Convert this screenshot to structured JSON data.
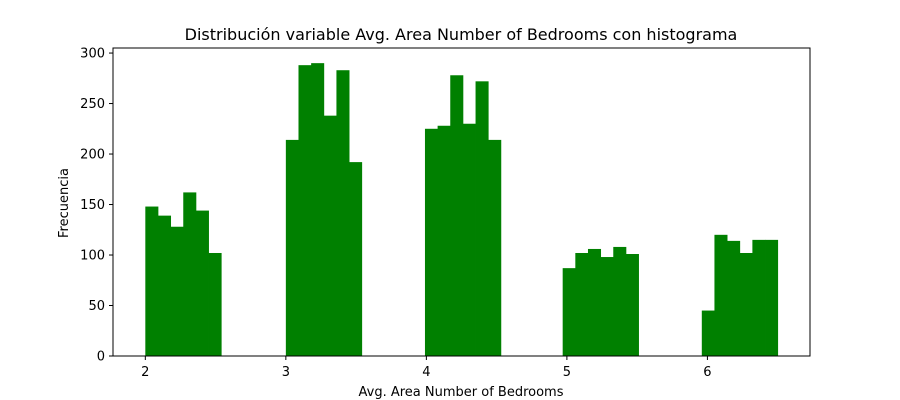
{
  "chart_data": {
    "type": "bar",
    "title": "Distribución variable Avg. Area Number of Bedrooms con histograma",
    "xlabel": "Avg. Area Number of Bedrooms",
    "ylabel": "Frecuencia",
    "xlim": [
      1.77,
      6.73
    ],
    "ylim": [
      0,
      305
    ],
    "x_ticks": [
      2,
      3,
      4,
      5,
      6
    ],
    "y_ticks": [
      0,
      50,
      100,
      150,
      200,
      250,
      300
    ],
    "bar_color": "#008000",
    "grid": false,
    "legend": "none",
    "bins": [
      {
        "x0": 2.0,
        "x1": 2.09,
        "count": 148
      },
      {
        "x0": 2.09,
        "x1": 2.18,
        "count": 139
      },
      {
        "x0": 2.18,
        "x1": 2.27,
        "count": 128
      },
      {
        "x0": 2.27,
        "x1": 2.36,
        "count": 162
      },
      {
        "x0": 2.36,
        "x1": 2.45,
        "count": 144
      },
      {
        "x0": 2.45,
        "x1": 2.54,
        "count": 102
      },
      {
        "x0": 3.0,
        "x1": 3.09,
        "count": 214
      },
      {
        "x0": 3.09,
        "x1": 3.18,
        "count": 288
      },
      {
        "x0": 3.18,
        "x1": 3.27,
        "count": 290
      },
      {
        "x0": 3.27,
        "x1": 3.36,
        "count": 238
      },
      {
        "x0": 3.36,
        "x1": 3.45,
        "count": 283
      },
      {
        "x0": 3.45,
        "x1": 3.54,
        "count": 192
      },
      {
        "x0": 3.99,
        "x1": 4.08,
        "count": 225
      },
      {
        "x0": 4.08,
        "x1": 4.17,
        "count": 228
      },
      {
        "x0": 4.17,
        "x1": 4.26,
        "count": 278
      },
      {
        "x0": 4.26,
        "x1": 4.35,
        "count": 230
      },
      {
        "x0": 4.35,
        "x1": 4.44,
        "count": 272
      },
      {
        "x0": 4.44,
        "x1": 4.53,
        "count": 214
      },
      {
        "x0": 4.97,
        "x1": 5.06,
        "count": 87
      },
      {
        "x0": 5.06,
        "x1": 5.15,
        "count": 102
      },
      {
        "x0": 5.15,
        "x1": 5.24,
        "count": 106
      },
      {
        "x0": 5.24,
        "x1": 5.33,
        "count": 98
      },
      {
        "x0": 5.33,
        "x1": 5.42,
        "count": 108
      },
      {
        "x0": 5.42,
        "x1": 5.51,
        "count": 101
      },
      {
        "x0": 5.96,
        "x1": 6.05,
        "count": 45
      },
      {
        "x0": 6.05,
        "x1": 6.14,
        "count": 120
      },
      {
        "x0": 6.14,
        "x1": 6.23,
        "count": 114
      },
      {
        "x0": 6.23,
        "x1": 6.32,
        "count": 102
      },
      {
        "x0": 6.32,
        "x1": 6.41,
        "count": 115
      },
      {
        "x0": 6.41,
        "x1": 6.5,
        "count": 115
      }
    ]
  }
}
